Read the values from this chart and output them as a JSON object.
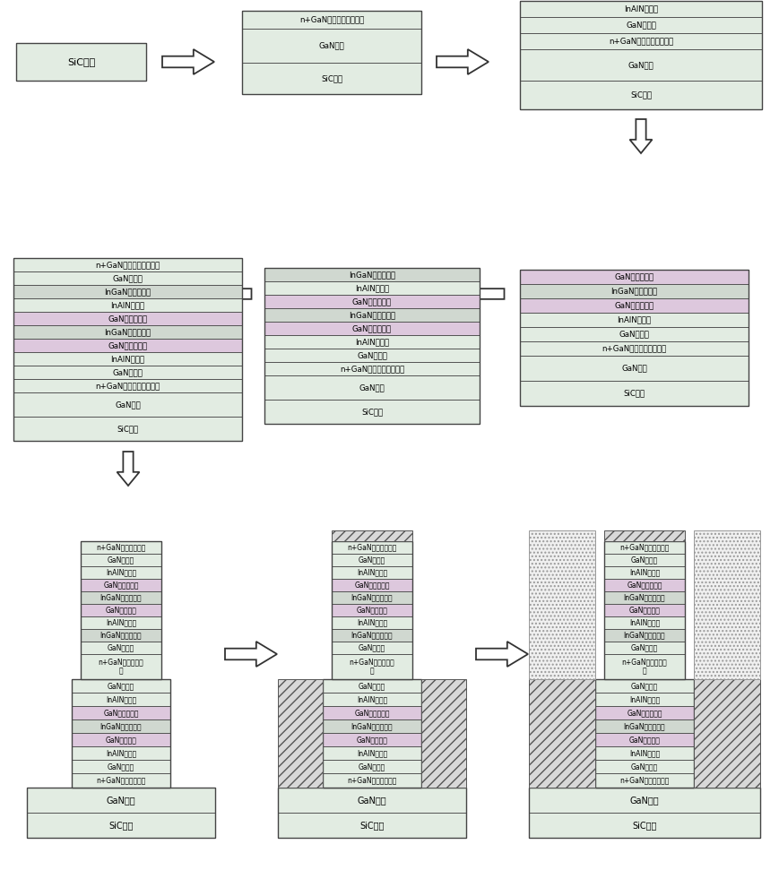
{
  "bg_color": "#f0f0f0",
  "box_border": "#888888",
  "layers": {
    "SiC": {
      "label": "SiC衬底",
      "color": "#dcdcdc"
    },
    "GaN_ext": {
      "label": "GaN外延",
      "color": "#e8e8e8"
    },
    "n_collector": {
      "label": "n+GaN集电极欧姆接触区",
      "color": "#e0e0e0"
    },
    "n_collector2": {
      "label": "n+GaN集电极欧姆区",
      "color": "#e0e0e0"
    },
    "GaN_iso": {
      "label": "GaN隔离区",
      "color": "#e8e8e8"
    },
    "InAlN_barrier": {
      "label": "InAlN势垒区",
      "color": "#e8e8e8"
    },
    "GaN_main_qw": {
      "label": "GaN主量子阱区",
      "color": "#d0b0d0"
    },
    "InGaN_sub_qw": {
      "label": "InGaN子量子阱区",
      "color": "#d0d0d0"
    },
    "n_emitter": {
      "label": "n+GaN发射极欧姆接触区",
      "color": "#e0e0e0"
    },
    "n_emitter2": {
      "label": "n+GaN发射极欧姆区",
      "color": "#e0e0e0"
    },
    "GaN_main_qw2": {
      "label": "GaN主量子阱",
      "color": "#d0b0d0"
    },
    "InGaN_sub_qw2": {
      "label": "InGaN子量子阱区",
      "color": "#d0d0d0"
    }
  }
}
